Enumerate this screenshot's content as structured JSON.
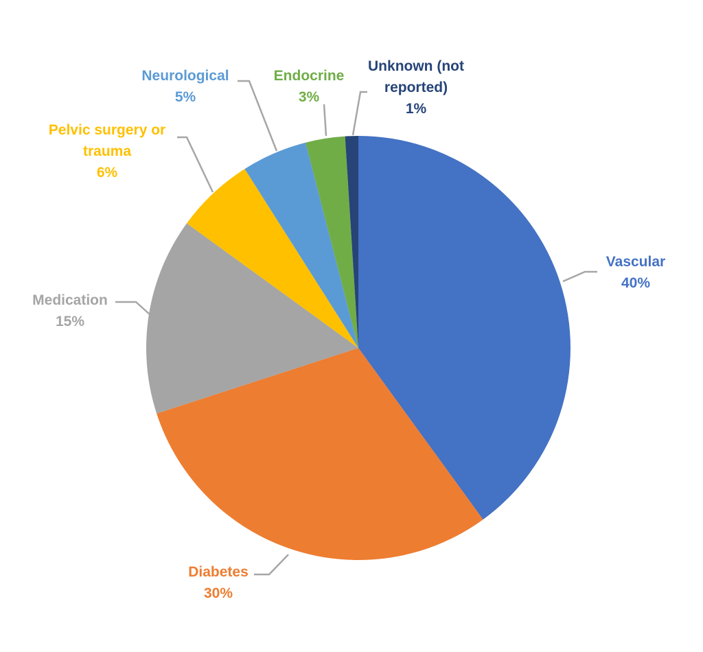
{
  "chart_data": {
    "type": "pie",
    "title": "",
    "start_angle_deg": 0,
    "direction": "clockwise",
    "slices": [
      {
        "label_lines": [
          "Vascular"
        ],
        "value": 40,
        "value_label": "40%",
        "color": "#4472C4"
      },
      {
        "label_lines": [
          "Diabetes"
        ],
        "value": 30,
        "value_label": "30%",
        "color": "#ED7D31"
      },
      {
        "label_lines": [
          "Medication"
        ],
        "value": 15,
        "value_label": "15%",
        "color": "#A5A5A5"
      },
      {
        "label_lines": [
          "Pelvic surgery or",
          "trauma"
        ],
        "value": 6,
        "value_label": "6%",
        "color": "#FFC000"
      },
      {
        "label_lines": [
          "Neurological"
        ],
        "value": 5,
        "value_label": "5%",
        "color": "#5B9BD5"
      },
      {
        "label_lines": [
          "Endocrine"
        ],
        "value": 3,
        "value_label": "3%",
        "color": "#70AD47"
      },
      {
        "label_lines": [
          "Unknown (not",
          "reported)"
        ],
        "value": 1,
        "value_label": "1%",
        "color": "#264478"
      }
    ],
    "leader_line_color": "#A6A6A6",
    "legend": "none"
  }
}
